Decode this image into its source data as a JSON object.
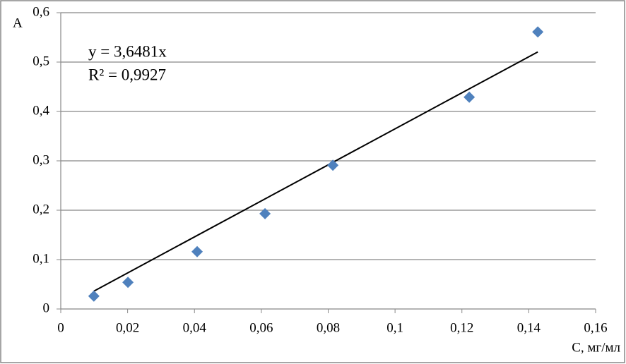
{
  "chart_data": {
    "type": "scatter",
    "x_label": "C, мг/мл",
    "y_label": "A",
    "annotations": [
      "y = 3,6481x",
      "R² = 0,9927"
    ],
    "trendline_slope": 3.6481,
    "series": [
      {
        "color": "#4f81bd",
        "x": [
          0.0099,
          0.0201,
          0.0408,
          0.0611,
          0.0814,
          0.1222,
          0.1427
        ],
        "values": [
          0.026,
          0.054,
          0.116,
          0.193,
          0.291,
          0.429,
          0.561
        ]
      }
    ],
    "trendline_color": "#000000",
    "xlim": [
      0,
      0.16
    ],
    "xticks": [
      0,
      {
        "value": 0.02,
        "label": "0,02"
      },
      {
        "value": 0.04,
        "label": "0,04"
      },
      {
        "value": 0.06,
        "label": "0,06"
      },
      {
        "value": 0.08,
        "label": "0,08"
      },
      {
        "value": 0.1,
        "label": "0,1"
      },
      {
        "value": 0.12,
        "label": "0,12"
      },
      {
        "value": 0.14,
        "label": "0,14"
      },
      {
        "value": 0.16,
        "label": "0,16"
      }
    ],
    "ylim": [
      0,
      0.6
    ],
    "yticks": [
      0,
      {
        "value": 0.1,
        "label": "0,1"
      },
      {
        "value": 0.2,
        "label": "0,2"
      },
      {
        "value": 0.3,
        "label": "0,3"
      },
      {
        "value": 0.4,
        "label": "0,4"
      },
      {
        "value": 0.5,
        "label": "0,5"
      },
      {
        "value": 0.6,
        "label": "0,6"
      }
    ],
    "grid": true
  }
}
